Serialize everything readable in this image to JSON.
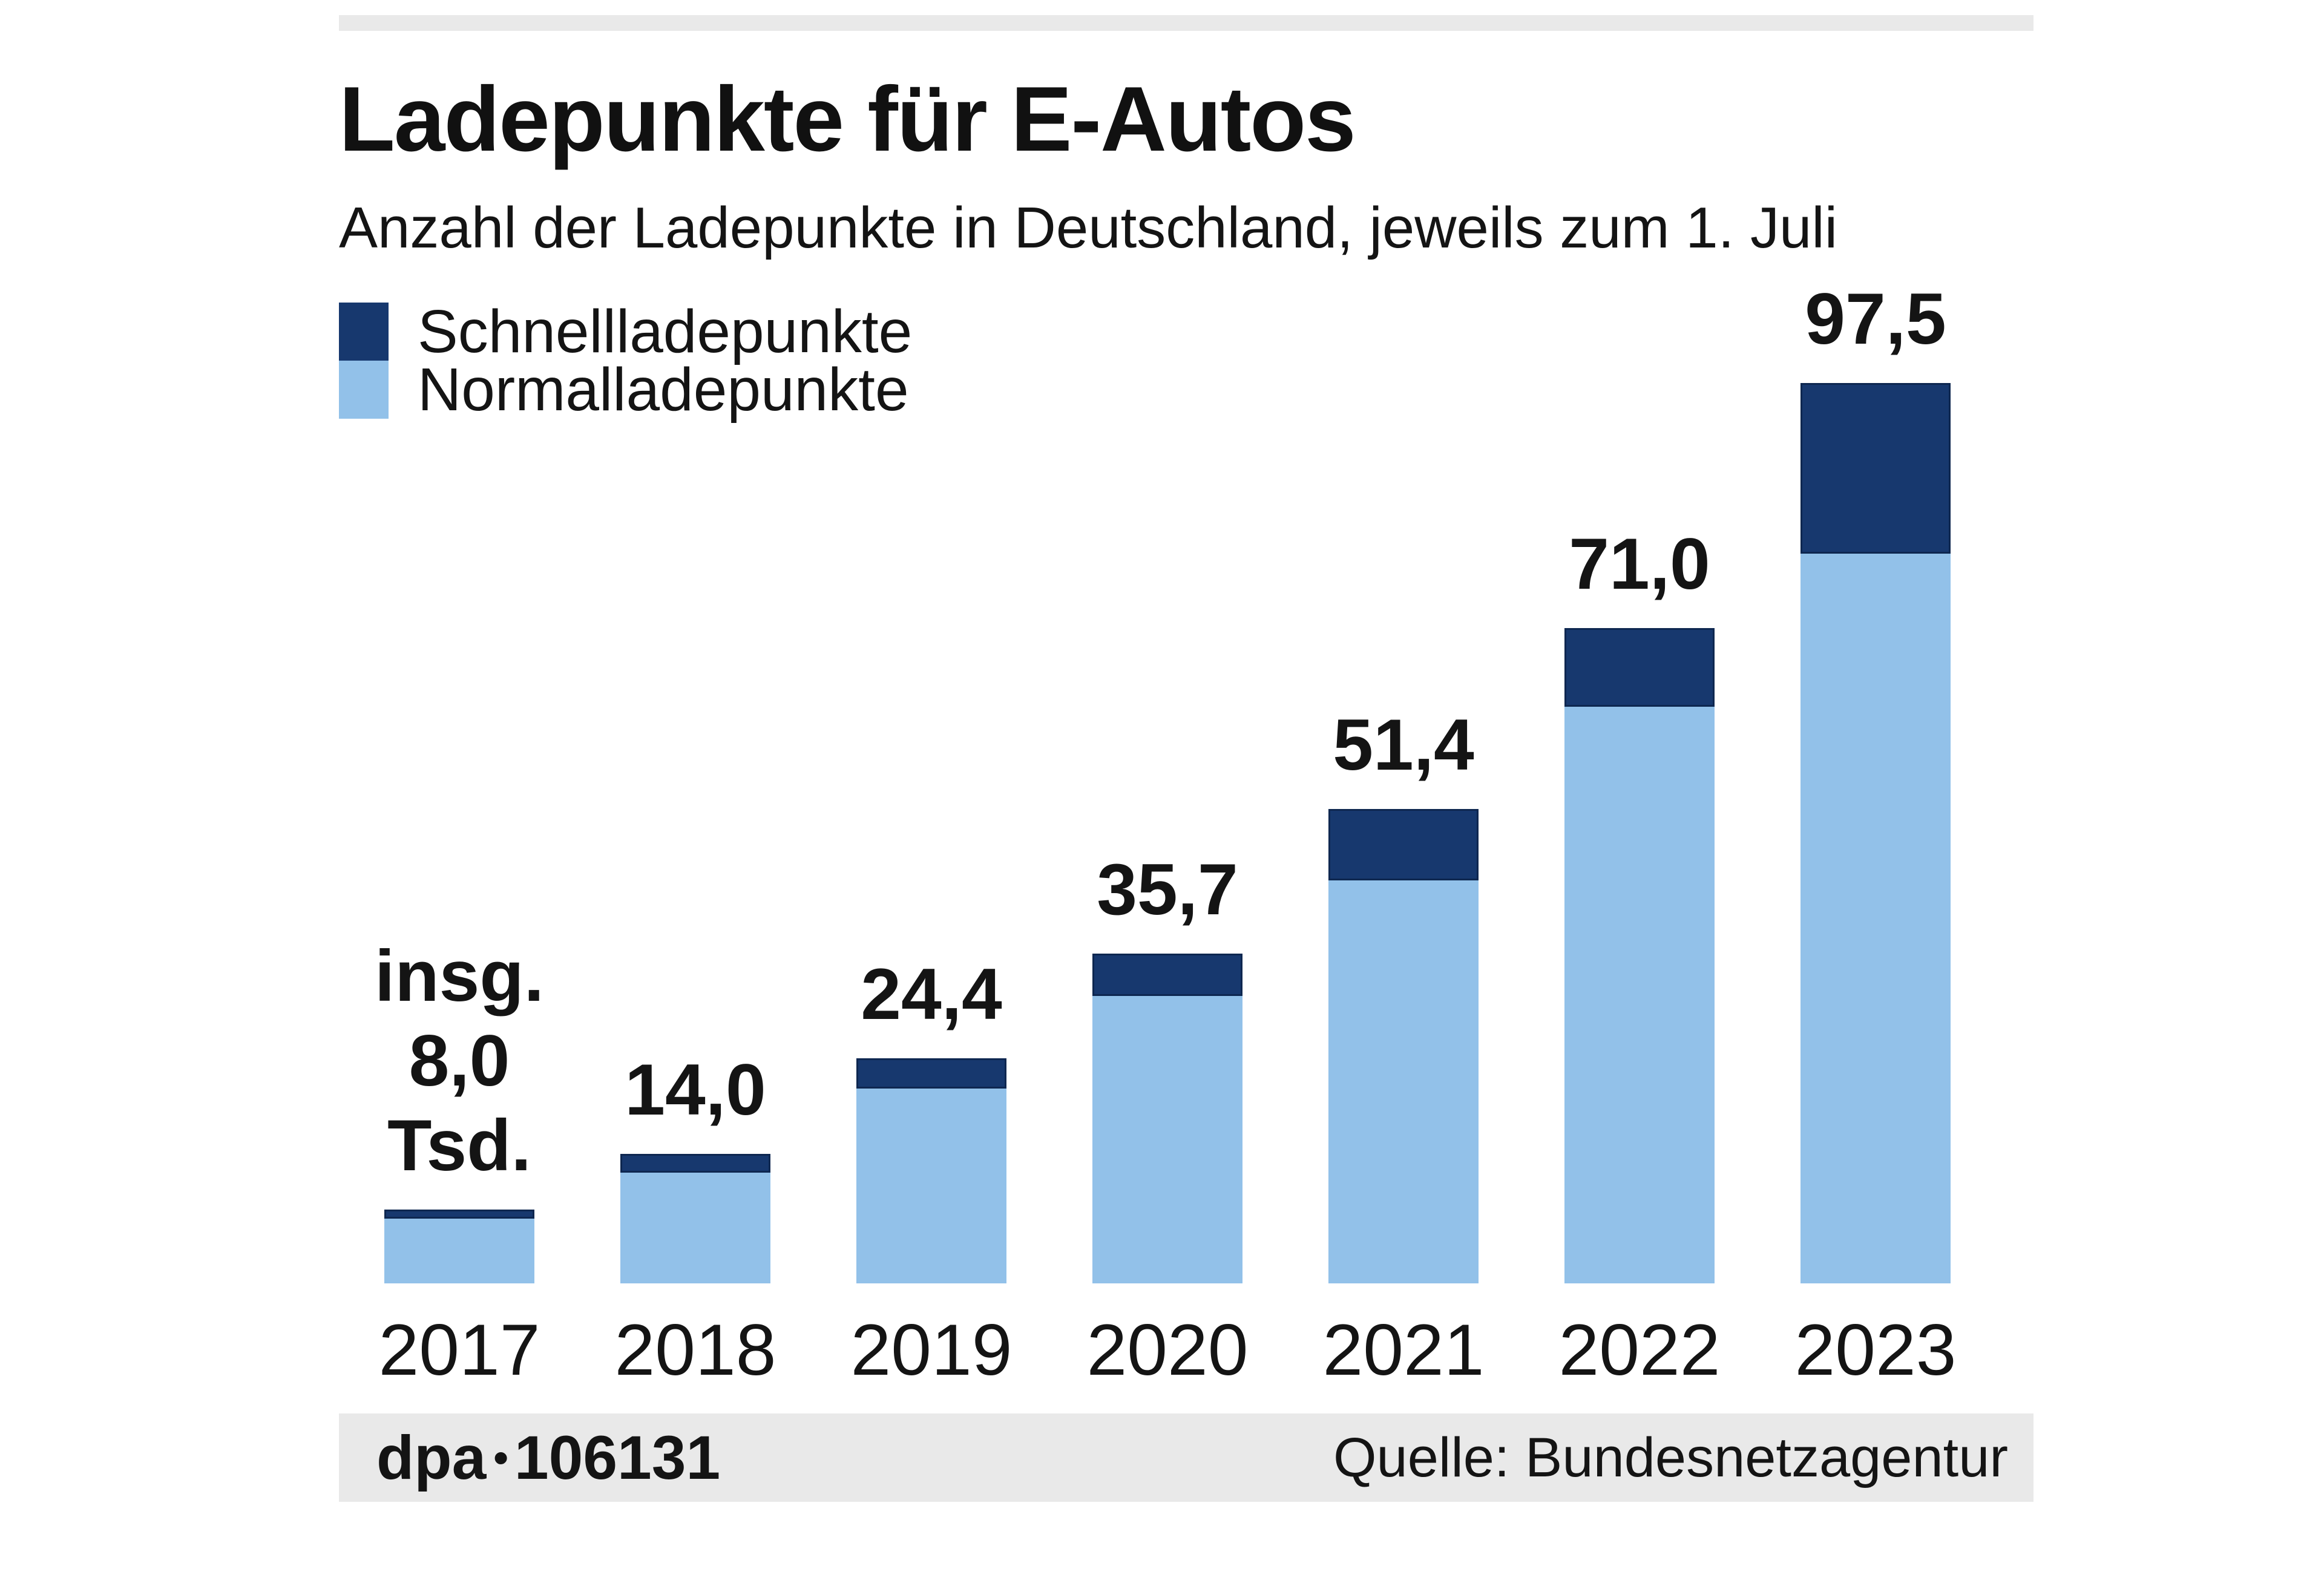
{
  "header": {
    "title": "Ladepunkte für E-Autos",
    "subtitle": "Anzahl der Ladepunkte in Deutschland, jeweils zum 1. Juli"
  },
  "legend": {
    "items": [
      {
        "label": "Schnellladepunkte",
        "color": "#17386e"
      },
      {
        "label": "Normalladepunkte",
        "color": "#92c1e9"
      }
    ]
  },
  "chart_data": {
    "type": "bar",
    "stacked": true,
    "unit": "Tsd.",
    "title": "Ladepunkte für E-Autos",
    "subtitle": "Anzahl der Ladepunkte in Deutschland, jeweils zum 1. Juli",
    "categories": [
      "2017",
      "2018",
      "2019",
      "2020",
      "2021",
      "2022",
      "2023"
    ],
    "series": [
      {
        "name": "Schnellladepunkte",
        "color": "#17386e",
        "values": [
          1.0,
          2.0,
          3.3,
          4.6,
          7.7,
          8.5,
          18.5
        ]
      },
      {
        "name": "Normalladepunkte",
        "color": "#92c1e9",
        "values": [
          7.0,
          12.0,
          21.1,
          31.1,
          43.7,
          62.5,
          79.0
        ]
      }
    ],
    "totals": [
      8.0,
      14.0,
      24.4,
      35.7,
      51.4,
      71.0,
      97.5
    ],
    "total_labels": [
      [
        "insg.",
        "8,0",
        "Tsd."
      ],
      [
        "14,0"
      ],
      [
        "24,4"
      ],
      [
        "35,7"
      ],
      [
        "51,4"
      ],
      [
        "71,0"
      ],
      [
        "97,5"
      ]
    ],
    "ylim": [
      0,
      100
    ],
    "grid": false,
    "legend_position": "top-left"
  },
  "footer": {
    "credit": "dpa",
    "separator": "•",
    "graphic_number": "106131",
    "source": "Quelle: Bundesnetzagentur"
  },
  "colors": {
    "fast_charging": "#17386e",
    "fast_charging_border": "#0e2750",
    "normal_charging": "#92c1e9",
    "band_gray": "#e9e9e9",
    "text": "#141414"
  }
}
